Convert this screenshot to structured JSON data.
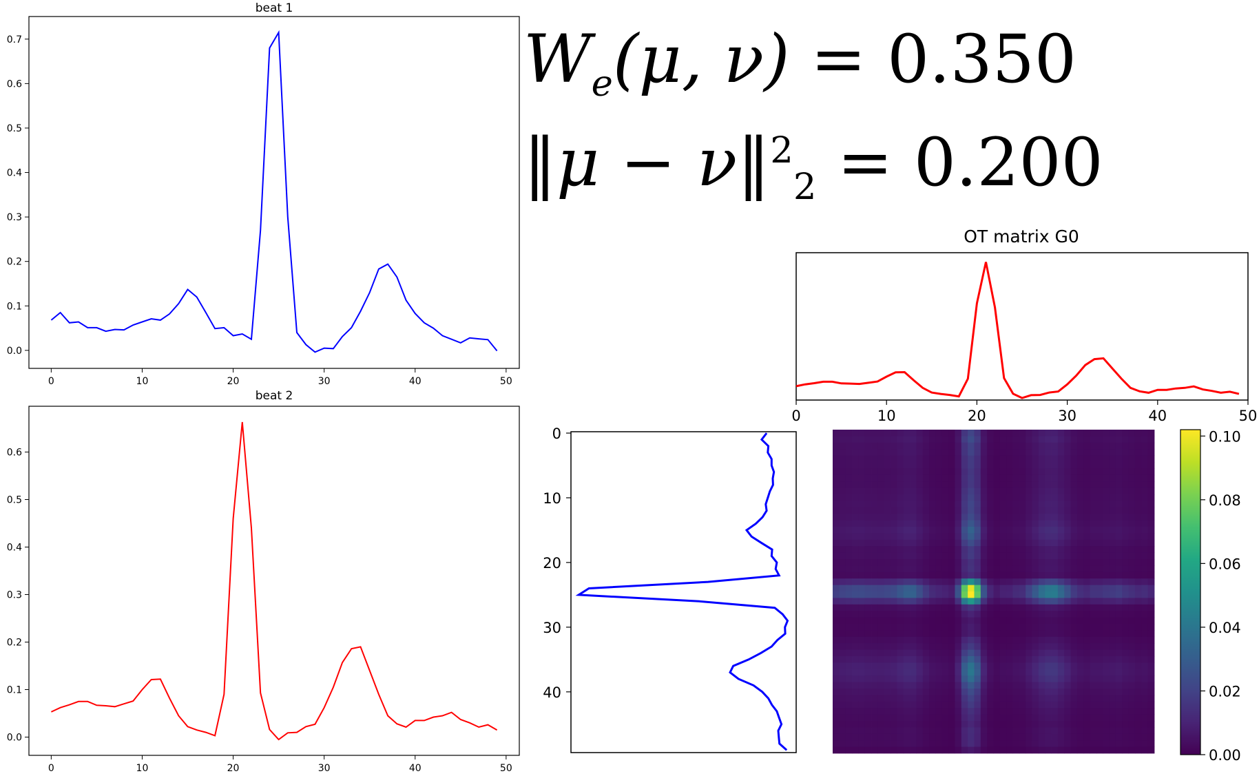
{
  "formulas": {
    "w_lhs_sym": "W",
    "w_lhs_args": "(μ, ν)",
    "w_sub": "e",
    "w_eq": "=",
    "w_value": "0.350",
    "l2_lhs": "‖μ − ν‖",
    "l2_sup": "2",
    "l2_sub": "2",
    "l2_eq": "=",
    "l2_value": "0.200"
  },
  "colors": {
    "beat1": "#0000ff",
    "beat2": "#ff0000",
    "axis": "#000000"
  },
  "chart_data": [
    {
      "type": "line",
      "title": "beat 1",
      "color": "#0000ff",
      "x": [
        0,
        1,
        2,
        3,
        4,
        5,
        6,
        7,
        8,
        9,
        10,
        11,
        12,
        13,
        14,
        15,
        16,
        17,
        18,
        19,
        20,
        21,
        22,
        23,
        24,
        25,
        26,
        27,
        28,
        29,
        30,
        31,
        32,
        33,
        34,
        35,
        36,
        37,
        38,
        39,
        40,
        41,
        42,
        43,
        44,
        45,
        46,
        47,
        48,
        49
      ],
      "values": [
        0.068,
        0.085,
        0.062,
        0.064,
        0.051,
        0.051,
        0.043,
        0.047,
        0.046,
        0.057,
        0.064,
        0.071,
        0.068,
        0.082,
        0.105,
        0.137,
        0.12,
        0.085,
        0.049,
        0.051,
        0.033,
        0.037,
        0.025,
        0.27,
        0.68,
        0.715,
        0.3,
        0.04,
        0.013,
        -0.004,
        0.005,
        0.004,
        0.031,
        0.051,
        0.088,
        0.13,
        0.183,
        0.194,
        0.165,
        0.113,
        0.083,
        0.062,
        0.05,
        0.033,
        0.025,
        0.017,
        0.028,
        0.026,
        0.024,
        -0.001
      ],
      "xlim": [
        -2.45,
        51.45
      ],
      "ylim": [
        -0.0405,
        0.7508
      ],
      "xticks": [
        0,
        10,
        20,
        30,
        40,
        50
      ],
      "yticks": [
        0.0,
        0.1,
        0.2,
        0.3,
        0.4,
        0.5,
        0.6,
        0.7
      ],
      "ytick_labels": [
        "0.0",
        "0.1",
        "0.2",
        "0.3",
        "0.4",
        "0.5",
        "0.6",
        "0.7"
      ]
    },
    {
      "type": "line",
      "title": "beat 2",
      "color": "#ff0000",
      "x": [
        0,
        1,
        2,
        3,
        4,
        5,
        6,
        7,
        8,
        9,
        10,
        11,
        12,
        13,
        14,
        15,
        16,
        17,
        18,
        19,
        20,
        21,
        22,
        23,
        24,
        25,
        26,
        27,
        28,
        29,
        30,
        31,
        32,
        33,
        34,
        35,
        36,
        37,
        38,
        39,
        40,
        41,
        42,
        43,
        44,
        45,
        46,
        47,
        48,
        49
      ],
      "values": [
        0.053,
        0.062,
        0.068,
        0.075,
        0.075,
        0.067,
        0.066,
        0.064,
        0.07,
        0.076,
        0.1,
        0.121,
        0.122,
        0.082,
        0.045,
        0.022,
        0.015,
        0.01,
        0.003,
        0.09,
        0.46,
        0.663,
        0.44,
        0.093,
        0.016,
        -0.005,
        0.009,
        0.01,
        0.022,
        0.027,
        0.062,
        0.105,
        0.157,
        0.186,
        0.19,
        0.14,
        0.09,
        0.045,
        0.028,
        0.021,
        0.035,
        0.035,
        0.042,
        0.045,
        0.052,
        0.037,
        0.03,
        0.021,
        0.026,
        0.015
      ],
      "xlim": [
        -2.45,
        51.45
      ],
      "ylim": [
        -0.0384,
        0.6964
      ],
      "xticks": [
        0,
        10,
        20,
        30,
        40,
        50
      ],
      "yticks": [
        0.0,
        0.1,
        0.2,
        0.3,
        0.4,
        0.5,
        0.6
      ],
      "ytick_labels": [
        "0.0",
        "0.1",
        "0.2",
        "0.3",
        "0.4",
        "0.5",
        "0.6"
      ]
    },
    {
      "type": "heatmap",
      "title": "OT matrix G0",
      "rows": 50,
      "cols": 50,
      "colormap": "viridis",
      "vmin": 0.0,
      "vmax": 0.102,
      "colorbar_ticks": [
        0.0,
        0.02,
        0.04,
        0.06,
        0.08,
        0.1
      ],
      "colorbar_labels": [
        "0.00",
        "0.02",
        "0.04",
        "0.06",
        "0.08",
        "0.10"
      ],
      "x_marginal_ticks": [
        0,
        10,
        20,
        30,
        40,
        50
      ],
      "y_marginal_ticks": [
        0,
        10,
        20,
        30,
        40
      ],
      "x_marginal_color": "#ff0000",
      "y_marginal_color": "#0000ff",
      "description_peak": {
        "row": 25,
        "col": 21,
        "value": 0.102
      }
    }
  ]
}
